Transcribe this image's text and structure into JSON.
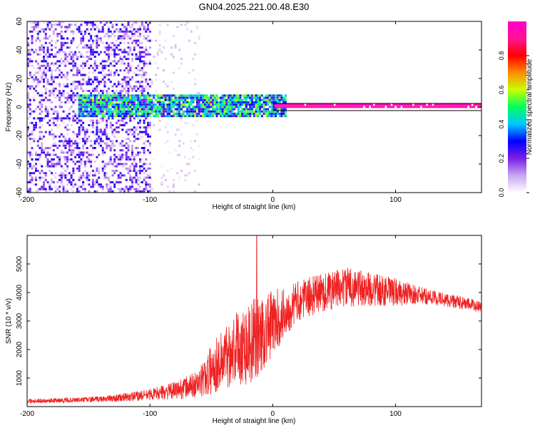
{
  "figure": {
    "title": "GN04.2025.221.00.48.E30"
  },
  "chart_data": [
    {
      "type": "heatmap",
      "title": "GN04.2025.221.00.48.E30",
      "xlabel": "Height of straight line (km)",
      "ylabel": "Frequency (Hz)",
      "xlim": [
        -200,
        170
      ],
      "ylim": [
        -60,
        60
      ],
      "x_ticks": [
        -200,
        -100,
        0,
        100
      ],
      "y_ticks": [
        -60,
        -40,
        -20,
        0,
        20,
        40,
        60
      ],
      "colorbar": {
        "label": "Normalized spectral amplitude",
        "range": [
          0.0,
          1.0
        ],
        "ticks": [
          0.0,
          0.2,
          0.4,
          0.6,
          0.8
        ],
        "colors": [
          "#ffffff",
          "#c9a6f0",
          "#7a1fe8",
          "#0000ff",
          "#00c8ff",
          "#00ff60",
          "#c8ff00",
          "#ff8c00",
          "#ff0000",
          "#ff1493",
          "#ff00c8"
        ]
      },
      "description_regions": [
        {
          "x_range": [
            -200,
            -100
          ],
          "freq_range": [
            -60,
            60
          ],
          "amplitude": [
            0.0,
            0.3
          ]
        },
        {
          "x_range": [
            -100,
            -60
          ],
          "freq_range": [
            -60,
            60
          ],
          "amplitude": [
            0.0,
            0.08
          ]
        },
        {
          "x_range": [
            -160,
            10
          ],
          "freq_range": [
            -8,
            8
          ],
          "amplitude": [
            0.2,
            0.6
          ]
        },
        {
          "x_range": [
            0,
            170
          ],
          "freq_range": [
            -1,
            1
          ],
          "amplitude": [
            0.9,
            1.0
          ]
        }
      ],
      "reference_lines": [
        2.5,
        -2.5
      ]
    },
    {
      "type": "line",
      "xlabel": "Height of straight line (km)",
      "ylabel": "SNR (10 * v/v)",
      "xlim": [
        -200,
        170
      ],
      "ylim": [
        0,
        6000
      ],
      "x_ticks": [
        -200,
        -100,
        0,
        100
      ],
      "y_ticks": [
        1000,
        2000,
        3000,
        4000,
        5000
      ],
      "series": [
        {
          "color": "#ee2222",
          "envelope_x": [
            -200,
            -180,
            -160,
            -140,
            -120,
            -100,
            -80,
            -60,
            -50,
            -40,
            -30,
            -20,
            -10,
            0,
            10,
            20,
            40,
            60,
            80,
            100,
            120,
            140,
            170
          ],
          "envelope_mean": [
            200,
            210,
            230,
            260,
            320,
            420,
            560,
            800,
            1300,
            1700,
            2100,
            2200,
            2500,
            2900,
            3300,
            3700,
            4000,
            4200,
            4100,
            4000,
            3900,
            3750,
            3500
          ],
          "envelope_spread": [
            80,
            80,
            90,
            100,
            150,
            200,
            300,
            500,
            900,
            1100,
            1300,
            1500,
            1400,
            1200,
            900,
            700,
            700,
            700,
            600,
            500,
            300,
            250,
            200
          ],
          "peak": {
            "x": -13,
            "y": 6000
          }
        }
      ]
    }
  ]
}
